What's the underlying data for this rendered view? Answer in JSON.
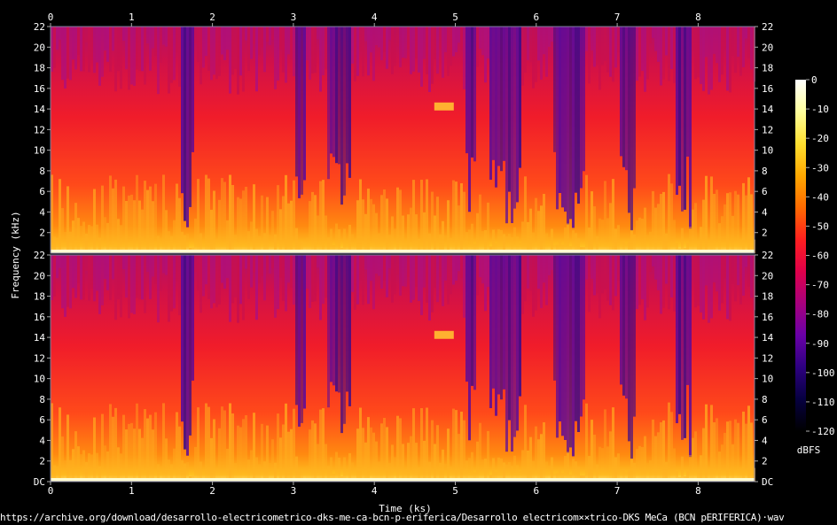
{
  "chart_data": {
    "type": "heatmap",
    "title": "",
    "xlabel": "Time (ks)",
    "ylabel": "Frequency (kHz)",
    "xlim": [
      0,
      8.7
    ],
    "ylim": [
      0,
      22
    ],
    "x_ticks": [
      "0",
      "1",
      "2",
      "3",
      "4",
      "5",
      "6",
      "7",
      "8"
    ],
    "y_ticks": [
      "DC",
      "2",
      "4",
      "6",
      "8",
      "10",
      "12",
      "14",
      "16",
      "18",
      "20",
      "22"
    ],
    "channels": 2,
    "colorbar": {
      "label": "dBFS",
      "range": [
        -120,
        0
      ],
      "ticks": [
        "0",
        "-10",
        "-20",
        "-30",
        "-40",
        "-50",
        "-60",
        "-70",
        "-80",
        "-90",
        "-100",
        "-110",
        "-120"
      ],
      "stops": [
        "#ffffff",
        "#ffff9c",
        "#ffe030",
        "#ffa800",
        "#ff6a00",
        "#ff1f1f",
        "#e0004a",
        "#a8007d",
        "#6a00a8",
        "#2d0080",
        "#060040",
        "#000000"
      ]
    },
    "quiet_segments_ks": [
      [
        1.6,
        1.75
      ],
      [
        3.0,
        3.15
      ],
      [
        3.4,
        3.7
      ],
      [
        5.1,
        5.25
      ],
      [
        5.4,
        5.8
      ],
      [
        6.2,
        6.6
      ],
      [
        7.0,
        7.2
      ],
      [
        7.7,
        7.9
      ]
    ],
    "tone_burst": {
      "time_ks": 4.85,
      "freq_khz": 14.2
    }
  },
  "footer": {
    "source": "https://archive.org/download/desarrollo-electricometrico-dks-me-ca-bcn-p-eriferica/Desarrollo electricom××trico-DKS MeCa (BCN pERIFERICA)·wav"
  }
}
